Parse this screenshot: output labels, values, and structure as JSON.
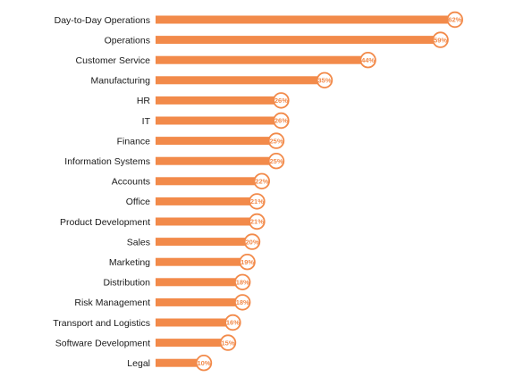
{
  "chart_data": {
    "type": "bar",
    "orientation": "horizontal",
    "title": "",
    "xlabel": "",
    "ylabel": "",
    "categories": [
      "Day-to-Day Operations",
      "Operations",
      "Customer Service",
      "Manufacturing",
      "HR",
      "IT",
      "Finance",
      "Information Systems",
      "Accounts",
      "Office",
      "Product Development",
      "Sales",
      "Marketing",
      "Distribution",
      "Risk Management",
      "Transport and Logistics",
      "Software Development",
      "Legal"
    ],
    "values": [
      62,
      59,
      44,
      35,
      26,
      26,
      25,
      25,
      22,
      21,
      21,
      20,
      19,
      18,
      18,
      16,
      15,
      10
    ],
    "value_labels": [
      "62%",
      "59%",
      "44%",
      "35%",
      "26%",
      "26%",
      "25%",
      "25%",
      "22%",
      "21%",
      "21%",
      "20%",
      "19%",
      "18%",
      "18%",
      "16%",
      "15%",
      "10%"
    ],
    "xlim": [
      0,
      65
    ],
    "grid": false,
    "legend": "none",
    "colors": {
      "bar": "#f28a4a",
      "marker_stroke": "#f28a4a",
      "marker_fill": "#ffffff",
      "value_text": "#f28a4a",
      "label_text": "#1a1a1a"
    }
  }
}
